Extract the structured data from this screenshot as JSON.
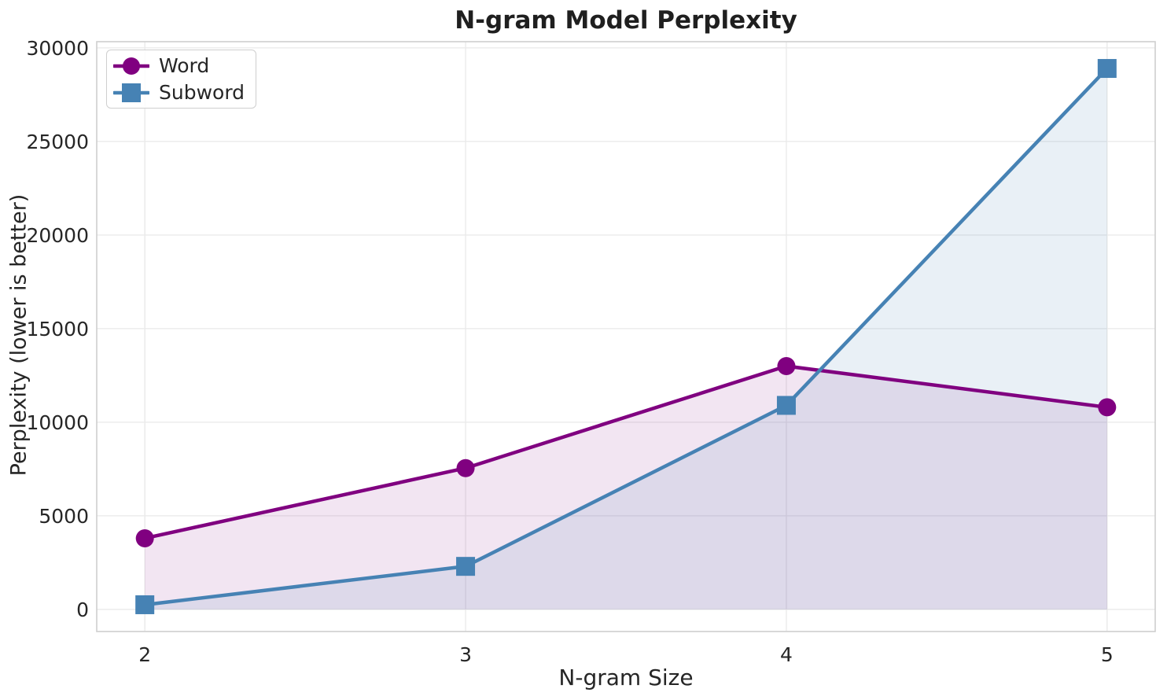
{
  "chart_data": {
    "type": "line",
    "title": "N-gram Model Perplexity",
    "xlabel": "N-gram Size",
    "ylabel": "Perplexity (lower is better)",
    "x": [
      2,
      3,
      4,
      5
    ],
    "xticks": [
      2,
      3,
      4,
      5
    ],
    "yticks": [
      0,
      5000,
      10000,
      15000,
      20000,
      25000,
      30000
    ],
    "xlim": [
      1.85,
      5.15
    ],
    "ylim": [
      -1180,
      30330
    ],
    "grid": true,
    "legend": {
      "position": "upper-left",
      "entries": [
        "Word",
        "Subword"
      ]
    },
    "series": [
      {
        "name": "Word",
        "marker": "circle",
        "color": "#800080",
        "fill_alpha": 0.1,
        "values": [
          3800,
          7550,
          13000,
          10800
        ]
      },
      {
        "name": "Subword",
        "marker": "square",
        "color": "#4682B4",
        "fill_alpha": 0.12,
        "values": [
          250,
          2300,
          10900,
          28900
        ]
      }
    ]
  }
}
